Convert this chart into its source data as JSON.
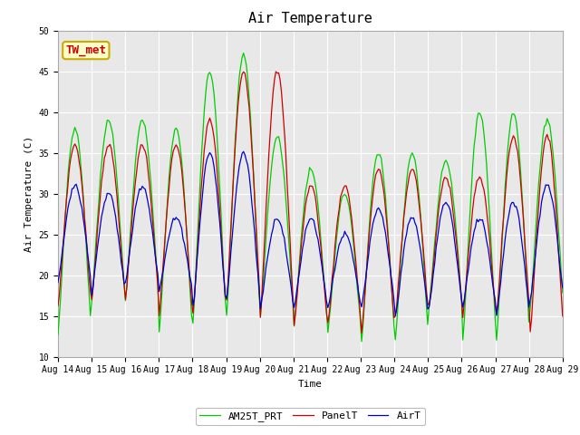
{
  "title": "Air Temperature",
  "xlabel": "Time",
  "ylabel": "Air Temperature (C)",
  "ylim": [
    10,
    50
  ],
  "x_tick_labels": [
    "Aug 14",
    "Aug 15",
    "Aug 16",
    "Aug 17",
    "Aug 18",
    "Aug 19",
    "Aug 20",
    "Aug 21",
    "Aug 22",
    "Aug 23",
    "Aug 24",
    "Aug 25",
    "Aug 26",
    "Aug 27",
    "Aug 28",
    "Aug 29"
  ],
  "legend_labels": [
    "PanelT",
    "AirT",
    "AM25T_PRT"
  ],
  "legend_colors": [
    "#cc0000",
    "#0000cc",
    "#00cc00"
  ],
  "annotation_text": "TW_met",
  "annotation_bg": "#ffffcc",
  "annotation_border": "#ccaa00",
  "annotation_text_color": "#cc0000",
  "plot_bg": "#e8e8e8",
  "grid_color": "#ffffff",
  "font_family": "monospace",
  "title_fontsize": 11,
  "axis_label_fontsize": 8,
  "tick_fontsize": 7,
  "legend_fontsize": 8,
  "panelT_peaks": [
    36,
    36,
    36,
    36,
    39,
    45,
    45,
    31,
    31,
    33,
    33,
    32,
    32,
    37,
    37
  ],
  "panelT_mins": [
    16,
    17,
    17,
    15,
    15,
    17,
    15,
    14,
    14,
    13,
    15,
    16,
    15,
    15,
    13
  ],
  "airT_peaks": [
    31,
    30,
    31,
    27,
    35,
    35,
    27,
    27,
    25,
    28,
    27,
    29,
    27,
    29,
    31
  ],
  "airT_mins": [
    19,
    18,
    19,
    18,
    16,
    17,
    16,
    16,
    16,
    16,
    15,
    16,
    16,
    15,
    17
  ],
  "am25T_peaks": [
    38,
    39,
    39,
    38,
    45,
    47,
    37,
    33,
    30,
    35,
    35,
    34,
    40,
    40,
    39
  ],
  "am25T_mins": [
    13,
    17,
    17,
    13,
    14,
    15,
    15,
    14,
    13,
    12,
    12,
    16,
    12,
    12,
    16
  ]
}
